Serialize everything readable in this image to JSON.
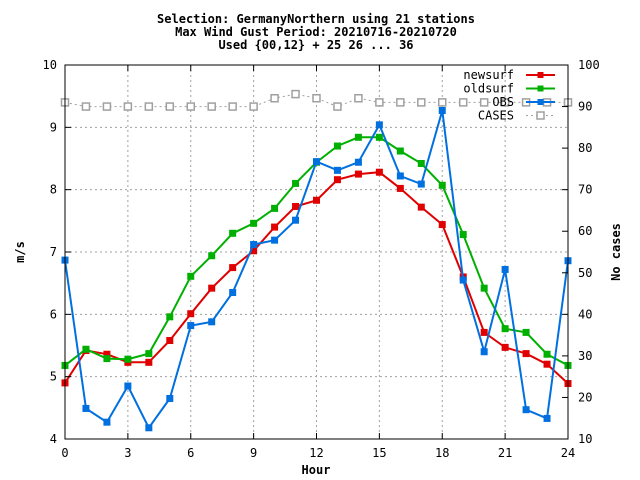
{
  "chart_data": {
    "type": "line",
    "title_lines": [
      "Selection: GermanyNorthern using    21 stations",
      "Max Wind Gust   Period: 20210716-20210720",
      "Used {00,12} + 25 26 ... 36"
    ],
    "xlabel": "Hour",
    "ylabel": "m/s",
    "y2label": "No cases",
    "xlim": [
      0,
      24
    ],
    "ylim": [
      4,
      10
    ],
    "y2lim": [
      10,
      100
    ],
    "xticks": [
      0,
      3,
      6,
      9,
      12,
      15,
      18,
      21,
      24
    ],
    "yticks": [
      4,
      5,
      6,
      7,
      8,
      9,
      10
    ],
    "y2ticks": [
      10,
      20,
      30,
      40,
      50,
      60,
      70,
      80,
      90,
      100
    ],
    "grid": true,
    "legend_position": "top-right",
    "x": [
      0,
      1,
      2,
      3,
      4,
      5,
      6,
      7,
      8,
      9,
      10,
      11,
      12,
      13,
      14,
      15,
      16,
      17,
      18,
      19,
      20,
      21,
      22,
      23,
      24
    ],
    "series": [
      {
        "name": "newsurf",
        "color": "#e00000",
        "axis": "y",
        "marker": "square",
        "dashed": false,
        "values": [
          4.9,
          5.42,
          5.36,
          5.23,
          5.23,
          5.58,
          6.01,
          6.42,
          6.75,
          7.02,
          7.4,
          7.73,
          7.83,
          8.16,
          8.25,
          8.28,
          8.02,
          7.72,
          7.44,
          6.6,
          5.71,
          5.47,
          5.37,
          5.2,
          4.89
        ]
      },
      {
        "name": "oldsurf",
        "color": "#00b000",
        "axis": "y",
        "marker": "square",
        "dashed": false,
        "values": [
          5.18,
          5.44,
          5.29,
          5.28,
          5.37,
          5.96,
          6.61,
          6.94,
          7.3,
          7.46,
          7.7,
          8.1,
          8.44,
          8.7,
          8.84,
          8.84,
          8.62,
          8.42,
          8.07,
          7.28,
          6.42,
          5.77,
          5.71,
          5.36,
          5.18
        ]
      },
      {
        "name": "OBS",
        "color": "#0070e0",
        "axis": "y",
        "marker": "square",
        "dashed": false,
        "values": [
          6.87,
          4.49,
          4.27,
          4.85,
          4.18,
          4.65,
          5.82,
          5.88,
          6.35,
          7.12,
          7.19,
          7.51,
          8.45,
          8.31,
          8.44,
          9.04,
          8.22,
          8.09,
          9.27,
          6.55,
          5.4,
          6.72,
          4.47,
          4.33,
          6.86
        ]
      },
      {
        "name": "CASES",
        "color": "#a0a0a0",
        "axis": "y2",
        "marker": "open-square",
        "dashed": true,
        "values": [
          91,
          90,
          90,
          90,
          90,
          90,
          90,
          90,
          90,
          90,
          92,
          93,
          92,
          90,
          92,
          91,
          91,
          91,
          91,
          91,
          91,
          91,
          91,
          91,
          91
        ]
      }
    ]
  }
}
